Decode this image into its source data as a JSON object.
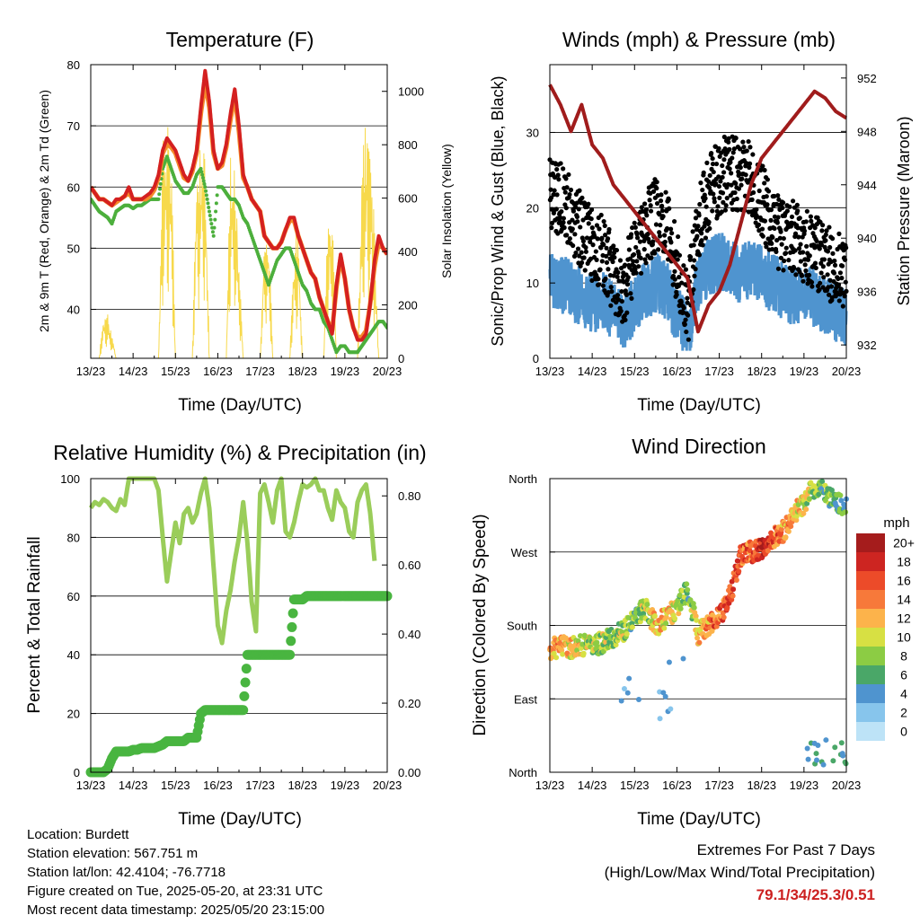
{
  "colors": {
    "temp_red": "#d42020",
    "temp_orange": "#f58a2a",
    "dewpoint_green": "#4caf3c",
    "solar_yellow": "#f7d94c",
    "wind_blue": "#4f94cf",
    "gust_black": "#000000",
    "pressure_maroon": "#a01c1c",
    "rh_lightgreen": "#9acd5a",
    "precip_green": "#49b540",
    "extremes_red": "#cc2020"
  },
  "x_ticks": [
    "13/23",
    "14/23",
    "15/23",
    "16/23",
    "17/23",
    "18/23",
    "19/23",
    "20/23"
  ],
  "x_label": "Time (Day/UTC)",
  "chart_data": [
    {
      "type": "line",
      "title": "Temperature (F)",
      "xlabel": "Time (Day/UTC)",
      "ylabel": "2m & 9m T (Red, Orange) & 2m Td (Green)",
      "y2label": "Solar Insolation (Yellow)",
      "ylim": [
        32,
        80
      ],
      "y_ticks": [
        40,
        50,
        60,
        70,
        80
      ],
      "y2lim": [
        0,
        1100
      ],
      "y2_ticks": [
        0,
        200,
        400,
        600,
        800,
        1000
      ],
      "grid": true,
      "x_days": [
        0,
        0.1,
        0.2,
        0.3,
        0.4,
        0.5,
        0.6,
        0.7,
        0.8,
        0.9,
        1.0,
        1.1,
        1.2,
        1.3,
        1.4,
        1.5,
        1.6,
        1.7,
        1.8,
        1.9,
        2.0,
        2.1,
        2.2,
        2.3,
        2.4,
        2.5,
        2.6,
        2.7,
        2.8,
        2.9,
        3.0,
        3.1,
        3.2,
        3.3,
        3.4,
        3.5,
        3.6,
        3.7,
        3.8,
        3.9,
        4.0,
        4.1,
        4.2,
        4.3,
        4.4,
        4.5,
        4.6,
        4.7,
        4.8,
        4.9,
        5.0,
        5.1,
        5.2,
        5.3,
        5.4,
        5.5,
        5.6,
        5.7,
        5.8,
        5.9,
        6.0,
        6.1,
        6.2,
        6.3,
        6.4,
        6.5,
        6.6,
        6.7,
        6.8,
        6.9,
        7.0
      ],
      "series": [
        {
          "name": "2m T",
          "color": "#d42020",
          "values": [
            60,
            59,
            58,
            58,
            57.5,
            57,
            58,
            58,
            58.5,
            60,
            58,
            58,
            58,
            58.5,
            59,
            60,
            62,
            66,
            68,
            67,
            66,
            64,
            62,
            61,
            63,
            66,
            73,
            79,
            74,
            66,
            63,
            64,
            67,
            72,
            76,
            70,
            62,
            60,
            58,
            57,
            56,
            52,
            51,
            50,
            50,
            51,
            53,
            55,
            55,
            52,
            50,
            48,
            46,
            45,
            42,
            40,
            38,
            36,
            44,
            49,
            45,
            40,
            37,
            35,
            35,
            36,
            41,
            48,
            52,
            50,
            49
          ]
        },
        {
          "name": "9m T",
          "color": "#f58a2a",
          "values": [
            60,
            59,
            58,
            58,
            57.5,
            57,
            57.5,
            58,
            58.5,
            59,
            58,
            58,
            58,
            58,
            58.5,
            59.5,
            61.5,
            65.5,
            67,
            66.5,
            65.5,
            63.5,
            61.5,
            61,
            62.5,
            65.5,
            72,
            77,
            73,
            65.5,
            63,
            63.5,
            66.5,
            71,
            75,
            69,
            61.5,
            60,
            58,
            57,
            56,
            52,
            51,
            50,
            50,
            51,
            53,
            54.5,
            54.5,
            52,
            50,
            48,
            46,
            45,
            42,
            40,
            38,
            36.5,
            43.5,
            48.5,
            45,
            40,
            37,
            35.5,
            35.5,
            36.5,
            41,
            47,
            51,
            50,
            49
          ]
        },
        {
          "name": "2m Td",
          "color": "#4caf3c",
          "values": [
            58,
            57,
            56,
            55.5,
            55,
            54,
            56,
            56.5,
            57,
            57,
            56.5,
            57,
            57,
            57.5,
            58,
            58,
            58,
            63,
            65,
            63,
            61,
            60,
            59,
            59,
            60,
            62,
            63,
            60,
            56,
            52,
            60,
            60,
            59,
            58,
            58,
            57,
            55,
            54,
            52,
            50,
            48,
            46,
            44,
            46,
            48,
            49,
            50,
            50,
            48,
            46,
            44,
            43,
            41,
            40,
            40,
            38,
            37,
            35,
            33,
            34,
            34,
            33,
            33,
            33,
            34,
            35,
            36,
            37,
            38,
            38,
            37
          ]
        },
        {
          "name": "Solar Insolation",
          "color": "#f7d94c",
          "axis": "y2",
          "values": [
            0,
            0,
            0,
            180,
            180,
            100,
            0,
            0,
            0,
            0,
            0,
            0,
            0,
            0,
            0,
            0,
            0,
            900,
            1000,
            820,
            0,
            0,
            0,
            0,
            0,
            800,
            880,
            860,
            0,
            0,
            0,
            0,
            0,
            820,
            860,
            400,
            0,
            0,
            0,
            0,
            0,
            520,
            520,
            0,
            0,
            0,
            0,
            0,
            450,
            520,
            0,
            0,
            0,
            0,
            0,
            0,
            600,
            580,
            0,
            0,
            0,
            0,
            0,
            0,
            760,
            1000,
            900,
            500,
            0,
            0,
            0
          ]
        }
      ]
    },
    {
      "type": "scatter",
      "title": "Winds (mph) & Pressure (mb)",
      "xlabel": "Time (Day/UTC)",
      "ylabel": "Sonic/Prop Wind & Gust (Blue, Black)",
      "y2label": "Station Pressure (Maroon)",
      "ylim": [
        0,
        39
      ],
      "y_ticks": [
        0,
        10,
        20,
        30
      ],
      "y2lim": [
        931,
        953
      ],
      "y2_ticks": [
        932,
        936,
        940,
        944,
        948,
        952
      ],
      "grid": true,
      "x_days": [
        0,
        0.25,
        0.5,
        0.75,
        1.0,
        1.25,
        1.5,
        1.75,
        2.0,
        2.25,
        2.5,
        2.75,
        3.0,
        3.25,
        3.5,
        3.75,
        4.0,
        4.25,
        4.5,
        4.75,
        5.0,
        5.25,
        5.5,
        5.75,
        6.0,
        6.25,
        6.5,
        6.75,
        7.0
      ],
      "series": [
        {
          "name": "Wind",
          "color": "#4f94cf",
          "values": [
            11,
            10,
            9,
            8,
            7,
            8,
            6,
            5,
            7,
            9,
            10,
            9,
            6,
            3,
            10,
            12,
            13,
            12,
            11,
            12,
            11,
            10,
            9,
            8,
            9,
            8,
            7,
            6,
            5
          ]
        },
        {
          "name": "Gust",
          "color": "#000000",
          "values": [
            22,
            21,
            19,
            17,
            15,
            14,
            11,
            9,
            14,
            17,
            19,
            18,
            12,
            6,
            18,
            22,
            24,
            25,
            24,
            24,
            21,
            18,
            16,
            16,
            15,
            14,
            13,
            12,
            11
          ]
        },
        {
          "name": "Pressure",
          "color": "#a01c1c",
          "axis": "y2",
          "values": [
            951.5,
            950,
            948,
            950,
            947,
            946,
            944,
            943,
            942,
            941,
            940,
            939,
            938,
            937,
            933,
            935,
            936,
            938,
            941,
            944,
            946,
            947,
            948,
            949,
            950,
            951,
            950.5,
            949.5,
            949
          ]
        }
      ]
    },
    {
      "type": "line",
      "title": "Relative Humidity (%) & Precipitation (in)",
      "xlabel": "Time (Day/UTC)",
      "ylabel": "Percent & Total Rainfall",
      "ylim": [
        0,
        100
      ],
      "y_ticks": [
        0,
        20,
        40,
        60,
        80,
        100
      ],
      "y2lim": [
        0,
        0.85
      ],
      "y2_ticks": [
        "0.00",
        "0.20",
        "0.40",
        "0.60",
        "0.80"
      ],
      "grid": true,
      "x_days": [
        0,
        0.1,
        0.2,
        0.3,
        0.4,
        0.5,
        0.6,
        0.7,
        0.8,
        0.9,
        1.0,
        1.1,
        1.2,
        1.3,
        1.4,
        1.5,
        1.6,
        1.7,
        1.8,
        1.9,
        2.0,
        2.1,
        2.2,
        2.3,
        2.4,
        2.5,
        2.6,
        2.7,
        2.8,
        2.9,
        3.0,
        3.1,
        3.2,
        3.3,
        3.4,
        3.5,
        3.6,
        3.7,
        3.8,
        3.9,
        4.0,
        4.1,
        4.2,
        4.3,
        4.4,
        4.5,
        4.6,
        4.7,
        4.8,
        4.9,
        5.0,
        5.1,
        5.2,
        5.3,
        5.4,
        5.5,
        5.6,
        5.7,
        5.8,
        5.9,
        6.0,
        6.1,
        6.2,
        6.3,
        6.4,
        6.5,
        6.6,
        6.7,
        6.8,
        6.9,
        7.0
      ],
      "series": [
        {
          "name": "RH",
          "color": "#9acd5a",
          "values": [
            90,
            92,
            91,
            93,
            92,
            90,
            89,
            93,
            91,
            100,
            100,
            100,
            100,
            100,
            100,
            100,
            96,
            80,
            65,
            75,
            85,
            78,
            88,
            90,
            85,
            88,
            95,
            100,
            90,
            70,
            50,
            44,
            55,
            62,
            72,
            80,
            92,
            78,
            58,
            48,
            95,
            98,
            92,
            85,
            96,
            100,
            82,
            80,
            85,
            92,
            98,
            97,
            98,
            100,
            96,
            96,
            90,
            86,
            96,
            92,
            90,
            82,
            80,
            92,
            96,
            98,
            88,
            72,
            72,
            70,
            70
          ]
        },
        {
          "name": "Total Precipitation",
          "color": "#49b540",
          "axis": "y2",
          "values": [
            0,
            0,
            0,
            0,
            0.01,
            0.04,
            0.06,
            0.06,
            0.06,
            0.06,
            0.065,
            0.065,
            0.07,
            0.07,
            0.07,
            0.07,
            0.075,
            0.08,
            0.09,
            0.09,
            0.09,
            0.09,
            0.09,
            0.1,
            0.1,
            0.1,
            0.17,
            0.18,
            0.18,
            0.18,
            0.18,
            0.18,
            0.18,
            0.18,
            0.18,
            0.18,
            0.18,
            0.34,
            0.34,
            0.34,
            0.34,
            0.34,
            0.34,
            0.34,
            0.34,
            0.34,
            0.34,
            0.34,
            0.5,
            0.5,
            0.5,
            0.51,
            0.51,
            0.51,
            0.51,
            0.51,
            0.51,
            0.51,
            0.51,
            0.51,
            0.51,
            0.51,
            0.51,
            0.51,
            0.51,
            0.51,
            0.51,
            0.51,
            0.51,
            0.51,
            0.51
          ]
        }
      ]
    },
    {
      "type": "scatter",
      "title": "Wind Direction",
      "xlabel": "Time (Day/UTC)",
      "ylabel": "Direction (Colored By Speed)",
      "y_ticks": [
        "North",
        "East",
        "South",
        "West",
        "North"
      ],
      "ylim": [
        0,
        360
      ],
      "grid": true,
      "colorbar_label": "mph",
      "colorbar_levels": [
        "0",
        "2",
        "4",
        "6",
        "8",
        "10",
        "12",
        "14",
        "16",
        "18",
        "20+"
      ],
      "colorbar_colors": [
        "#bde3f7",
        "#87c5ec",
        "#4f94cf",
        "#4aa768",
        "#8ccc44",
        "#d7e043",
        "#fcb34b",
        "#f7793a",
        "#ec4b29",
        "#cd2521",
        "#a51c1c"
      ],
      "x_days": [
        0,
        0.25,
        0.5,
        0.75,
        1.0,
        1.25,
        1.5,
        1.75,
        2.0,
        2.25,
        2.5,
        2.75,
        3.0,
        3.25,
        3.5,
        3.75,
        4.0,
        4.25,
        4.5,
        4.75,
        5.0,
        5.25,
        5.5,
        5.75,
        6.0,
        6.25,
        6.5,
        6.75,
        7.0
      ],
      "directions": [
        150,
        155,
        152,
        155,
        155,
        160,
        165,
        175,
        190,
        200,
        180,
        190,
        200,
        225,
        170,
        180,
        190,
        215,
        265,
        270,
        275,
        285,
        295,
        315,
        330,
        350,
        345,
        330,
        325
      ],
      "speeds": [
        12,
        13,
        11,
        10,
        9,
        9,
        8,
        9,
        7,
        9,
        12,
        11,
        9,
        6,
        12,
        14,
        15,
        16,
        16,
        14,
        18,
        16,
        13,
        12,
        10,
        8,
        7,
        6,
        6
      ]
    }
  ],
  "info": {
    "location": "Location: Burdett",
    "elevation": "Station elevation: 567.751 m",
    "latlon": "Station lat/lon: 42.4104; -76.7718",
    "created": "Figure created on Tue, 2025-05-20, at 23:31 UTC",
    "timestamp": "Most recent data timestamp: 2025/05/20 23:15:00"
  },
  "extremes": {
    "title": "Extremes For Past 7 Days",
    "subtitle": "(High/Low/Max Wind/Total Precipitation)",
    "values": "79.1/34/25.3/0.51"
  }
}
